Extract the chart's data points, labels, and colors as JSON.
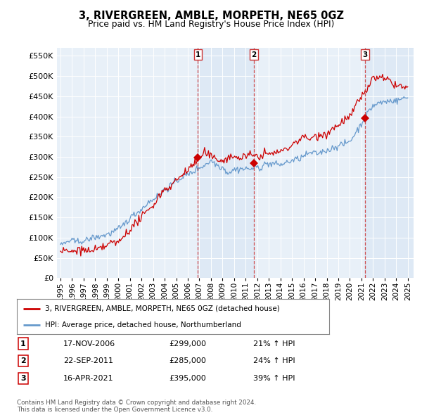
{
  "title": "3, RIVERGREEN, AMBLE, MORPETH, NE65 0GZ",
  "subtitle": "Price paid vs. HM Land Registry's House Price Index (HPI)",
  "background_color": "#ffffff",
  "plot_bg_color": "#e8f0f8",
  "grid_color": "#ffffff",
  "sale_dates": [
    2006.88,
    2011.72,
    2021.29
  ],
  "sale_prices": [
    299000,
    285000,
    395000
  ],
  "sale_labels": [
    "1",
    "2",
    "3"
  ],
  "legend_line1": "3, RIVERGREEN, AMBLE, MORPETH, NE65 0GZ (detached house)",
  "legend_line2": "HPI: Average price, detached house, Northumberland",
  "table_data": [
    [
      "1",
      "17-NOV-2006",
      "£299,000",
      "21% ↑ HPI"
    ],
    [
      "2",
      "22-SEP-2011",
      "£285,000",
      "24% ↑ HPI"
    ],
    [
      "3",
      "16-APR-2021",
      "£395,000",
      "39% ↑ HPI"
    ]
  ],
  "footer": "Contains HM Land Registry data © Crown copyright and database right 2024.\nThis data is licensed under the Open Government Licence v3.0.",
  "red_color": "#cc0000",
  "blue_color": "#6699cc",
  "shade_color": "#ccdcf0",
  "vline_color": "#cc3333",
  "ylim": [
    0,
    570000
  ],
  "yticks": [
    0,
    50000,
    100000,
    150000,
    200000,
    250000,
    300000,
    350000,
    400000,
    450000,
    500000,
    550000
  ],
  "xlim_start": 1994.7,
  "xlim_end": 2025.5
}
